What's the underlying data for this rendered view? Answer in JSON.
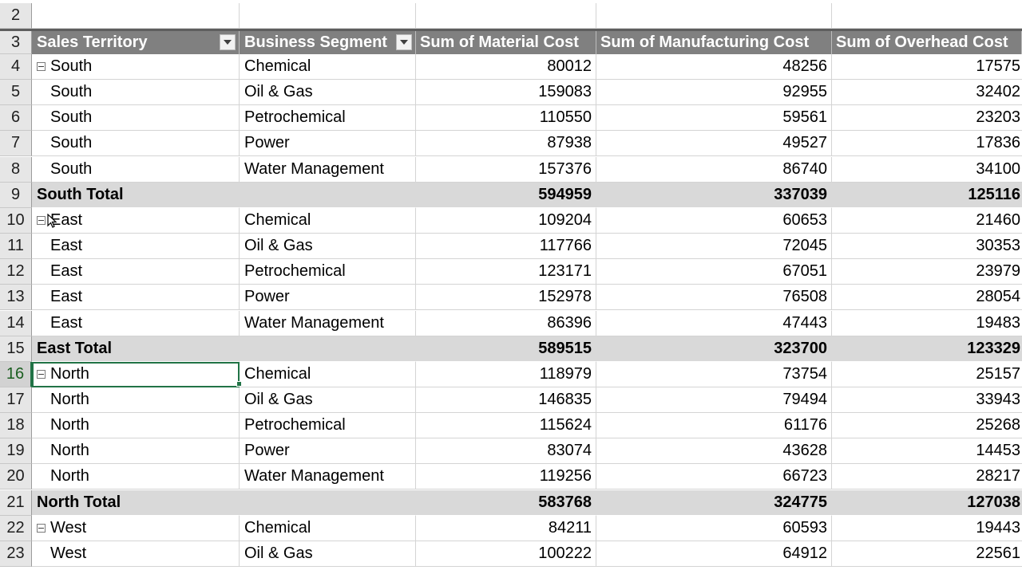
{
  "row_numbers": [
    "2",
    "3",
    "4",
    "5",
    "6",
    "7",
    "8",
    "9",
    "10",
    "11",
    "12",
    "13",
    "14",
    "15",
    "16",
    "17",
    "18",
    "19",
    "20",
    "21",
    "22",
    "23"
  ],
  "headers": {
    "territory": "Sales Territory",
    "segment": "Business Segment",
    "material": "Sum of Material Cost",
    "manufacturing": "Sum of Manufacturing Cost",
    "overhead": "Sum of Overhead Cost"
  },
  "rows": [
    {
      "territory": "South",
      "segment": "Chemical",
      "material": "80012",
      "manufacturing": "48256",
      "overhead": "17575"
    },
    {
      "territory": "South",
      "segment": "Oil & Gas",
      "material": "159083",
      "manufacturing": "92955",
      "overhead": "32402"
    },
    {
      "territory": "South",
      "segment": "Petrochemical",
      "material": "110550",
      "manufacturing": "59561",
      "overhead": "23203"
    },
    {
      "territory": "South",
      "segment": "Power",
      "material": "87938",
      "manufacturing": "49527",
      "overhead": "17836"
    },
    {
      "territory": "South",
      "segment": "Water Management",
      "material": "157376",
      "manufacturing": "86740",
      "overhead": "34100"
    },
    {
      "territory": "South Total",
      "segment": "",
      "material": "594959",
      "manufacturing": "337039",
      "overhead": "125116"
    },
    {
      "territory": "East",
      "segment": "Chemical",
      "material": "109204",
      "manufacturing": "60653",
      "overhead": "21460"
    },
    {
      "territory": "East",
      "segment": "Oil & Gas",
      "material": "117766",
      "manufacturing": "72045",
      "overhead": "30353"
    },
    {
      "territory": "East",
      "segment": "Petrochemical",
      "material": "123171",
      "manufacturing": "67051",
      "overhead": "23979"
    },
    {
      "territory": "East",
      "segment": "Power",
      "material": "152978",
      "manufacturing": "76508",
      "overhead": "28054"
    },
    {
      "territory": "East",
      "segment": "Water Management",
      "material": "86396",
      "manufacturing": "47443",
      "overhead": "19483"
    },
    {
      "territory": "East Total",
      "segment": "",
      "material": "589515",
      "manufacturing": "323700",
      "overhead": "123329"
    },
    {
      "territory": "North",
      "segment": "Chemical",
      "material": "118979",
      "manufacturing": "73754",
      "overhead": "25157"
    },
    {
      "territory": "North",
      "segment": "Oil & Gas",
      "material": "146835",
      "manufacturing": "79494",
      "overhead": "33943"
    },
    {
      "territory": "North",
      "segment": "Petrochemical",
      "material": "115624",
      "manufacturing": "61176",
      "overhead": "25268"
    },
    {
      "territory": "North",
      "segment": "Power",
      "material": "83074",
      "manufacturing": "43628",
      "overhead": "14453"
    },
    {
      "territory": "North",
      "segment": "Water Management",
      "material": "119256",
      "manufacturing": "66723",
      "overhead": "28217"
    },
    {
      "territory": "North Total",
      "segment": "",
      "material": "583768",
      "manufacturing": "324775",
      "overhead": "127038"
    },
    {
      "territory": "West",
      "segment": "Chemical",
      "material": "84211",
      "manufacturing": "60593",
      "overhead": "19443"
    },
    {
      "territory": "West",
      "segment": "Oil & Gas",
      "material": "100222",
      "manufacturing": "64912",
      "overhead": "22561"
    }
  ],
  "colors": {
    "header_bg": "#808080",
    "total_bg": "#d9d9d9",
    "selection": "#217346"
  },
  "icons": {
    "collapse": "collapse-minus-icon",
    "filter": "filter-dropdown-icon",
    "cursor": "move-cursor-icon"
  }
}
